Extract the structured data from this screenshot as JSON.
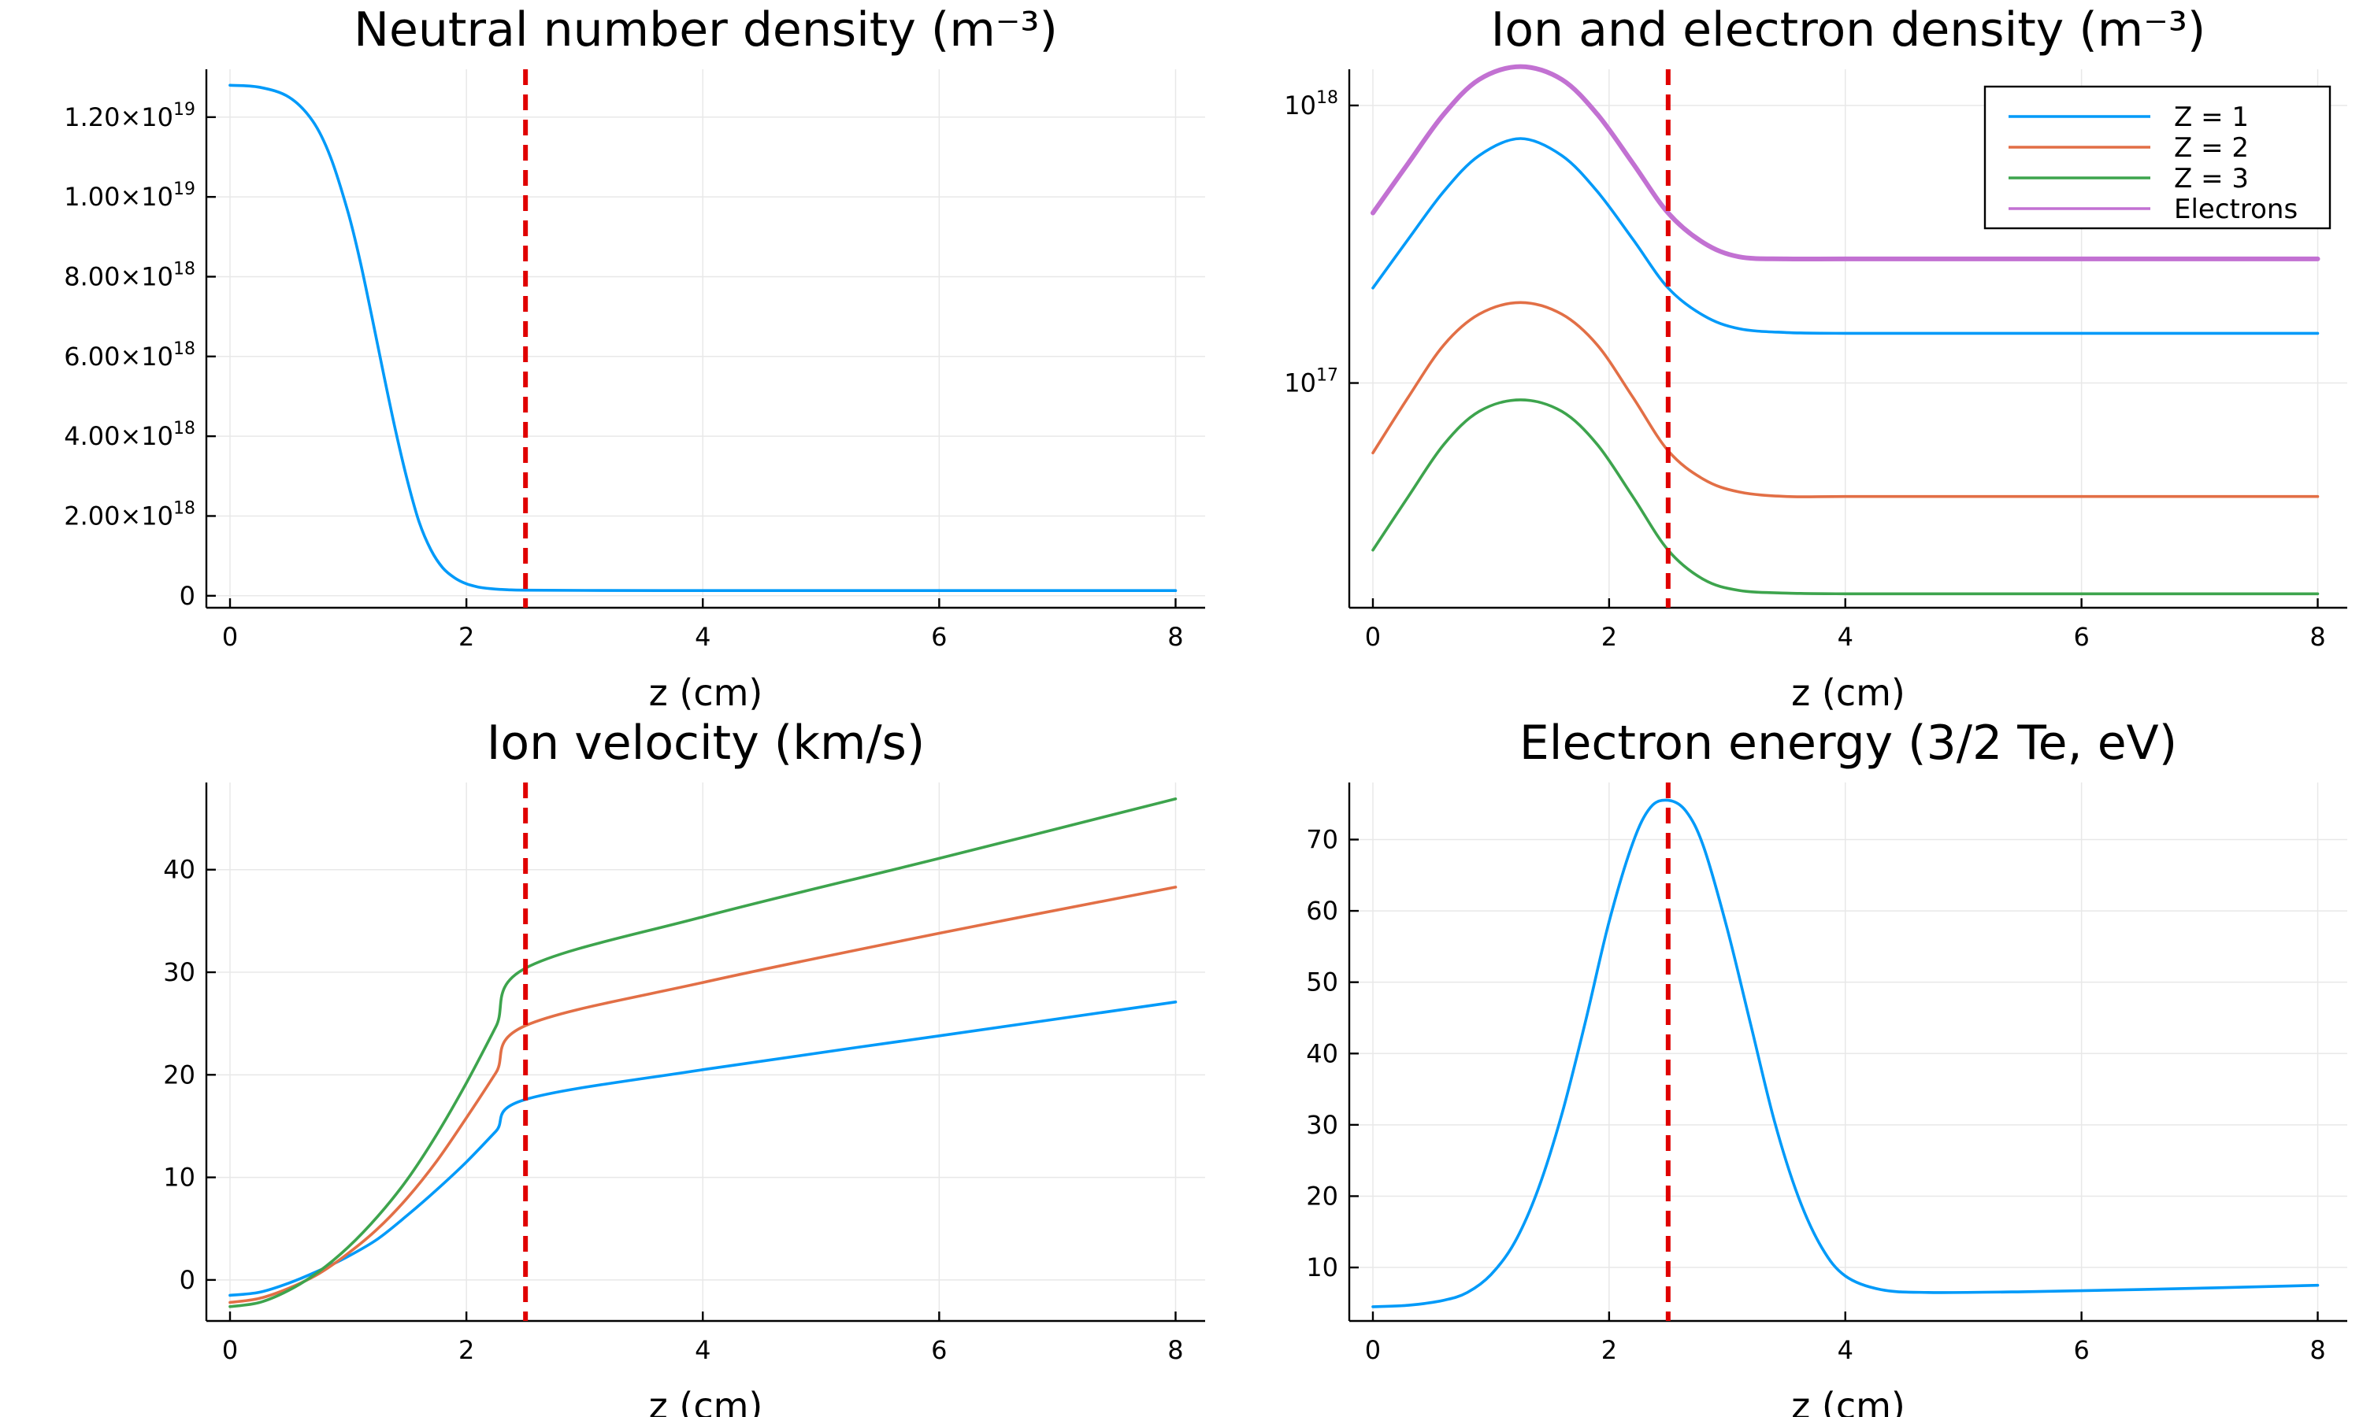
{
  "chart_data": [
    {
      "id": "neutral",
      "type": "line",
      "title": "Neutral number density (m⁻³)",
      "xlabel": "z (cm)",
      "ylabel": "",
      "xlim": [
        -0.2,
        8.25
      ],
      "ylim": [
        -3e+17,
        1.32e+19
      ],
      "xticks": [
        0,
        2,
        4,
        6,
        8
      ],
      "yticks": [
        {
          "value": 0,
          "mantissa": "0",
          "exp": ""
        },
        {
          "value": 2e+18,
          "mantissa": "2.00×10",
          "exp": "18"
        },
        {
          "value": 4e+18,
          "mantissa": "4.00×10",
          "exp": "18"
        },
        {
          "value": 6e+18,
          "mantissa": "6.00×10",
          "exp": "18"
        },
        {
          "value": 8e+18,
          "mantissa": "8.00×10",
          "exp": "18"
        },
        {
          "value": 1e+19,
          "mantissa": "1.00×10",
          "exp": "19"
        },
        {
          "value": 1.2e+19,
          "mantissa": "1.20×10",
          "exp": "19"
        }
      ],
      "vline": 2.5,
      "series": [
        {
          "color": "#009af9",
          "x": [
            0,
            0.25,
            0.5,
            0.7,
            0.85,
            1.0,
            1.1,
            1.2,
            1.3,
            1.4,
            1.5,
            1.6,
            1.7,
            1.8,
            1.9,
            2.0,
            2.1,
            2.2,
            2.35,
            2.5,
            3.0,
            4.0,
            5.0,
            6.0,
            7.0,
            8.0
          ],
          "y": [
            1.28e+19,
            1.275e+19,
            1.25e+19,
            1.19e+19,
            1.1e+19,
            9.6e+18,
            8.4e+18,
            7e+18,
            5.55e+18,
            4.15e+18,
            2.9e+18,
            1.85e+18,
            1.15e+18,
            7e+17,
            4.5e+17,
            3e+17,
            2.2e+17,
            1.8e+17,
            1.5e+17,
            1.4e+17,
            1.35e+17,
            1.3e+17,
            1.3e+17,
            1.3e+17,
            1.3e+17,
            1.3e+17
          ]
        }
      ]
    },
    {
      "id": "ion",
      "type": "line",
      "title": "Ion and electron density (m⁻³)",
      "xlabel": "z (cm)",
      "ylabel": "",
      "log_y": true,
      "xlim": [
        -0.2,
        8.25
      ],
      "ylim": [
        1.55e+16,
        1.35e+18
      ],
      "xticks": [
        0,
        2,
        4,
        6,
        8
      ],
      "yticks": [
        {
          "value": 1e+17,
          "mantissa": "10",
          "exp": "17"
        },
        {
          "value": 1e+18,
          "mantissa": "10",
          "exp": "18"
        }
      ],
      "vline": 2.5,
      "legend": "top-right",
      "series": [
        {
          "name": "Z = 1",
          "color": "#009af9",
          "x": [
            0,
            0.3,
            0.6,
            0.9,
            1.25,
            1.6,
            1.9,
            2.2,
            2.5,
            2.8,
            3.1,
            3.5,
            4.0,
            5.0,
            6.0,
            8.0
          ],
          "y": [
            2.2e+17,
            3.3e+17,
            4.9e+17,
            6.6e+17,
            7.6e+17,
            6.6e+17,
            4.9e+17,
            3.3e+17,
            2.2e+17,
            1.75e+17,
            1.57e+17,
            1.52e+17,
            1.51e+17,
            1.51e+17,
            1.51e+17,
            1.51e+17
          ]
        },
        {
          "name": "Z = 2",
          "color": "#e26f46",
          "x": [
            0,
            0.3,
            0.6,
            0.9,
            1.25,
            1.6,
            1.9,
            2.2,
            2.5,
            2.8,
            3.1,
            3.5,
            4.0,
            5.0,
            6.0,
            8.0
          ],
          "y": [
            5.6e+16,
            8.9e+16,
            1.37e+17,
            1.77e+17,
            1.95e+17,
            1.77e+17,
            1.37e+17,
            8.9e+16,
            5.7e+16,
            4.5e+16,
            4.05e+16,
            3.9e+16,
            3.9e+16,
            3.9e+16,
            3.9e+16,
            3.9e+16
          ]
        },
        {
          "name": "Z = 3",
          "color": "#3da44d",
          "x": [
            0,
            0.3,
            0.6,
            0.9,
            1.25,
            1.6,
            1.9,
            2.2,
            2.5,
            2.8,
            3.1,
            3.5,
            4.0,
            5.0,
            6.0,
            8.0
          ],
          "y": [
            2.5e+16,
            3.9e+16,
            6e+16,
            7.9e+16,
            8.7e+16,
            7.9e+16,
            6e+16,
            3.9e+16,
            2.5e+16,
            1.96e+16,
            1.79e+16,
            1.75e+16,
            1.74e+16,
            1.74e+16,
            1.74e+16,
            1.74e+16
          ]
        },
        {
          "name": "Electrons",
          "color": "#c271d2",
          "x": [
            0,
            0.3,
            0.6,
            0.9,
            1.25,
            1.6,
            1.9,
            2.2,
            2.5,
            2.8,
            3.1,
            3.5,
            4.0,
            5.0,
            6.0,
            8.0
          ],
          "y": [
            4.1e+17,
            6.2e+17,
            9.3e+17,
            1.24e+18,
            1.38e+18,
            1.24e+18,
            9.3e+17,
            6.2e+17,
            4.1e+17,
            3.2e+17,
            2.85e+17,
            2.8e+17,
            2.8e+17,
            2.8e+17,
            2.8e+17,
            2.8e+17
          ]
        }
      ]
    },
    {
      "id": "velocity",
      "type": "line",
      "title": "Ion velocity (km/s)",
      "xlabel": "z (cm)",
      "ylabel": "",
      "xlim": [
        -0.2,
        8.25
      ],
      "ylim": [
        -4,
        48.5
      ],
      "xticks": [
        0,
        2,
        4,
        6,
        8
      ],
      "yticks": [
        {
          "value": 0,
          "mantissa": "0",
          "exp": ""
        },
        {
          "value": 10,
          "mantissa": "10",
          "exp": ""
        },
        {
          "value": 20,
          "mantissa": "20",
          "exp": ""
        },
        {
          "value": 30,
          "mantissa": "30",
          "exp": ""
        },
        {
          "value": 40,
          "mantissa": "40",
          "exp": ""
        }
      ],
      "vline": 2.5,
      "series": [
        {
          "color": "#009af9",
          "x": [
            0,
            0.25,
            0.5,
            0.75,
            1.0,
            1.25,
            1.5,
            1.75,
            2.0,
            2.25,
            2.5,
            4.0,
            6.0,
            8.0
          ],
          "y": [
            -1.5,
            -1.2,
            -0.3,
            0.9,
            2.3,
            4.0,
            6.3,
            8.8,
            11.5,
            14.5,
            17.6,
            20.5,
            23.8,
            27.1
          ]
        },
        {
          "color": "#e26f46",
          "x": [
            0,
            0.25,
            0.5,
            0.75,
            1.0,
            1.25,
            1.5,
            1.75,
            2.0,
            2.25,
            2.5,
            4.0,
            6.0,
            8.0
          ],
          "y": [
            -2.2,
            -1.8,
            -0.8,
            0.6,
            2.6,
            5.0,
            8.0,
            11.6,
            15.8,
            20.2,
            24.8,
            29.0,
            33.8,
            38.3
          ]
        },
        {
          "color": "#3da44d",
          "x": [
            0,
            0.25,
            0.5,
            0.75,
            1.0,
            1.25,
            1.5,
            1.75,
            2.0,
            2.25,
            2.5,
            4.0,
            6.0,
            8.0
          ],
          "y": [
            -2.6,
            -2.2,
            -1.0,
            0.8,
            3.2,
            6.2,
            9.8,
            14.2,
            19.2,
            24.7,
            30.4,
            35.4,
            41.1,
            46.9
          ]
        }
      ]
    },
    {
      "id": "energy",
      "type": "line",
      "title": "Electron energy (3/2 Te, eV)",
      "xlabel": "z (cm)",
      "ylabel": "",
      "xlim": [
        -0.2,
        8.25
      ],
      "ylim": [
        2.5,
        78
      ],
      "xticks": [
        0,
        2,
        4,
        6,
        8
      ],
      "yticks": [
        {
          "value": 10,
          "mantissa": "10",
          "exp": ""
        },
        {
          "value": 20,
          "mantissa": "20",
          "exp": ""
        },
        {
          "value": 30,
          "mantissa": "30",
          "exp": ""
        },
        {
          "value": 40,
          "mantissa": "40",
          "exp": ""
        },
        {
          "value": 50,
          "mantissa": "50",
          "exp": ""
        },
        {
          "value": 60,
          "mantissa": "60",
          "exp": ""
        },
        {
          "value": 70,
          "mantissa": "70",
          "exp": ""
        }
      ],
      "vline": 2.5,
      "series": [
        {
          "color": "#009af9",
          "x": [
            0,
            0.3,
            0.6,
            0.8,
            1.0,
            1.2,
            1.4,
            1.6,
            1.8,
            2.0,
            2.2,
            2.35,
            2.5,
            2.65,
            2.8,
            3.0,
            3.2,
            3.4,
            3.6,
            3.8,
            4.0,
            4.3,
            4.7,
            5.5,
            6.5,
            8.0
          ],
          "y": [
            4.5,
            4.7,
            5.4,
            6.5,
            9.0,
            13.5,
            21.0,
            31.5,
            44.5,
            58.5,
            69.5,
            74.5,
            75.5,
            74.0,
            69.0,
            57.5,
            44.0,
            30.5,
            20.0,
            12.8,
            8.8,
            6.9,
            6.5,
            6.6,
            6.9,
            7.5
          ]
        }
      ]
    }
  ]
}
